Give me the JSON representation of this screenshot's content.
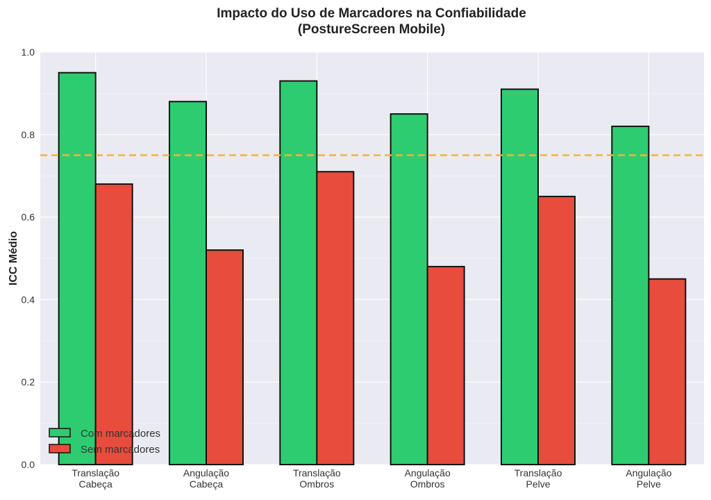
{
  "chart_data": {
    "type": "bar",
    "title_line1": "Impacto do Uso de Marcadores na Confiabilidade",
    "title_line2": "(PostureScreen Mobile)",
    "ylabel": "ICC Médio",
    "xlabel": "",
    "ylim": [
      0.0,
      1.0
    ],
    "yticks": [
      "0.0",
      "0.2",
      "0.4",
      "0.6",
      "0.8",
      "1.0"
    ],
    "ytick_values": [
      0.0,
      0.2,
      0.4,
      0.6,
      0.8,
      1.0
    ],
    "categories": [
      [
        "Translação",
        "Cabeça"
      ],
      [
        "Angulação",
        "Cabeça"
      ],
      [
        "Translação",
        "Ombros"
      ],
      [
        "Angulação",
        "Ombros"
      ],
      [
        "Translação",
        "Pelve"
      ],
      [
        "Angulação",
        "Pelve"
      ]
    ],
    "series": [
      {
        "name": "Com marcadores",
        "color": "#2ecc71",
        "values": [
          0.95,
          0.88,
          0.93,
          0.85,
          0.91,
          0.82
        ]
      },
      {
        "name": "Sem marcadores",
        "color": "#e74c3c",
        "values": [
          0.68,
          0.52,
          0.71,
          0.48,
          0.65,
          0.45
        ]
      }
    ],
    "reference_line": {
      "value": 0.75,
      "color": "#f0b43c",
      "style": "dashed"
    },
    "grid": true,
    "legend_position": "lower-left",
    "background_color": "#eaeaf2"
  }
}
